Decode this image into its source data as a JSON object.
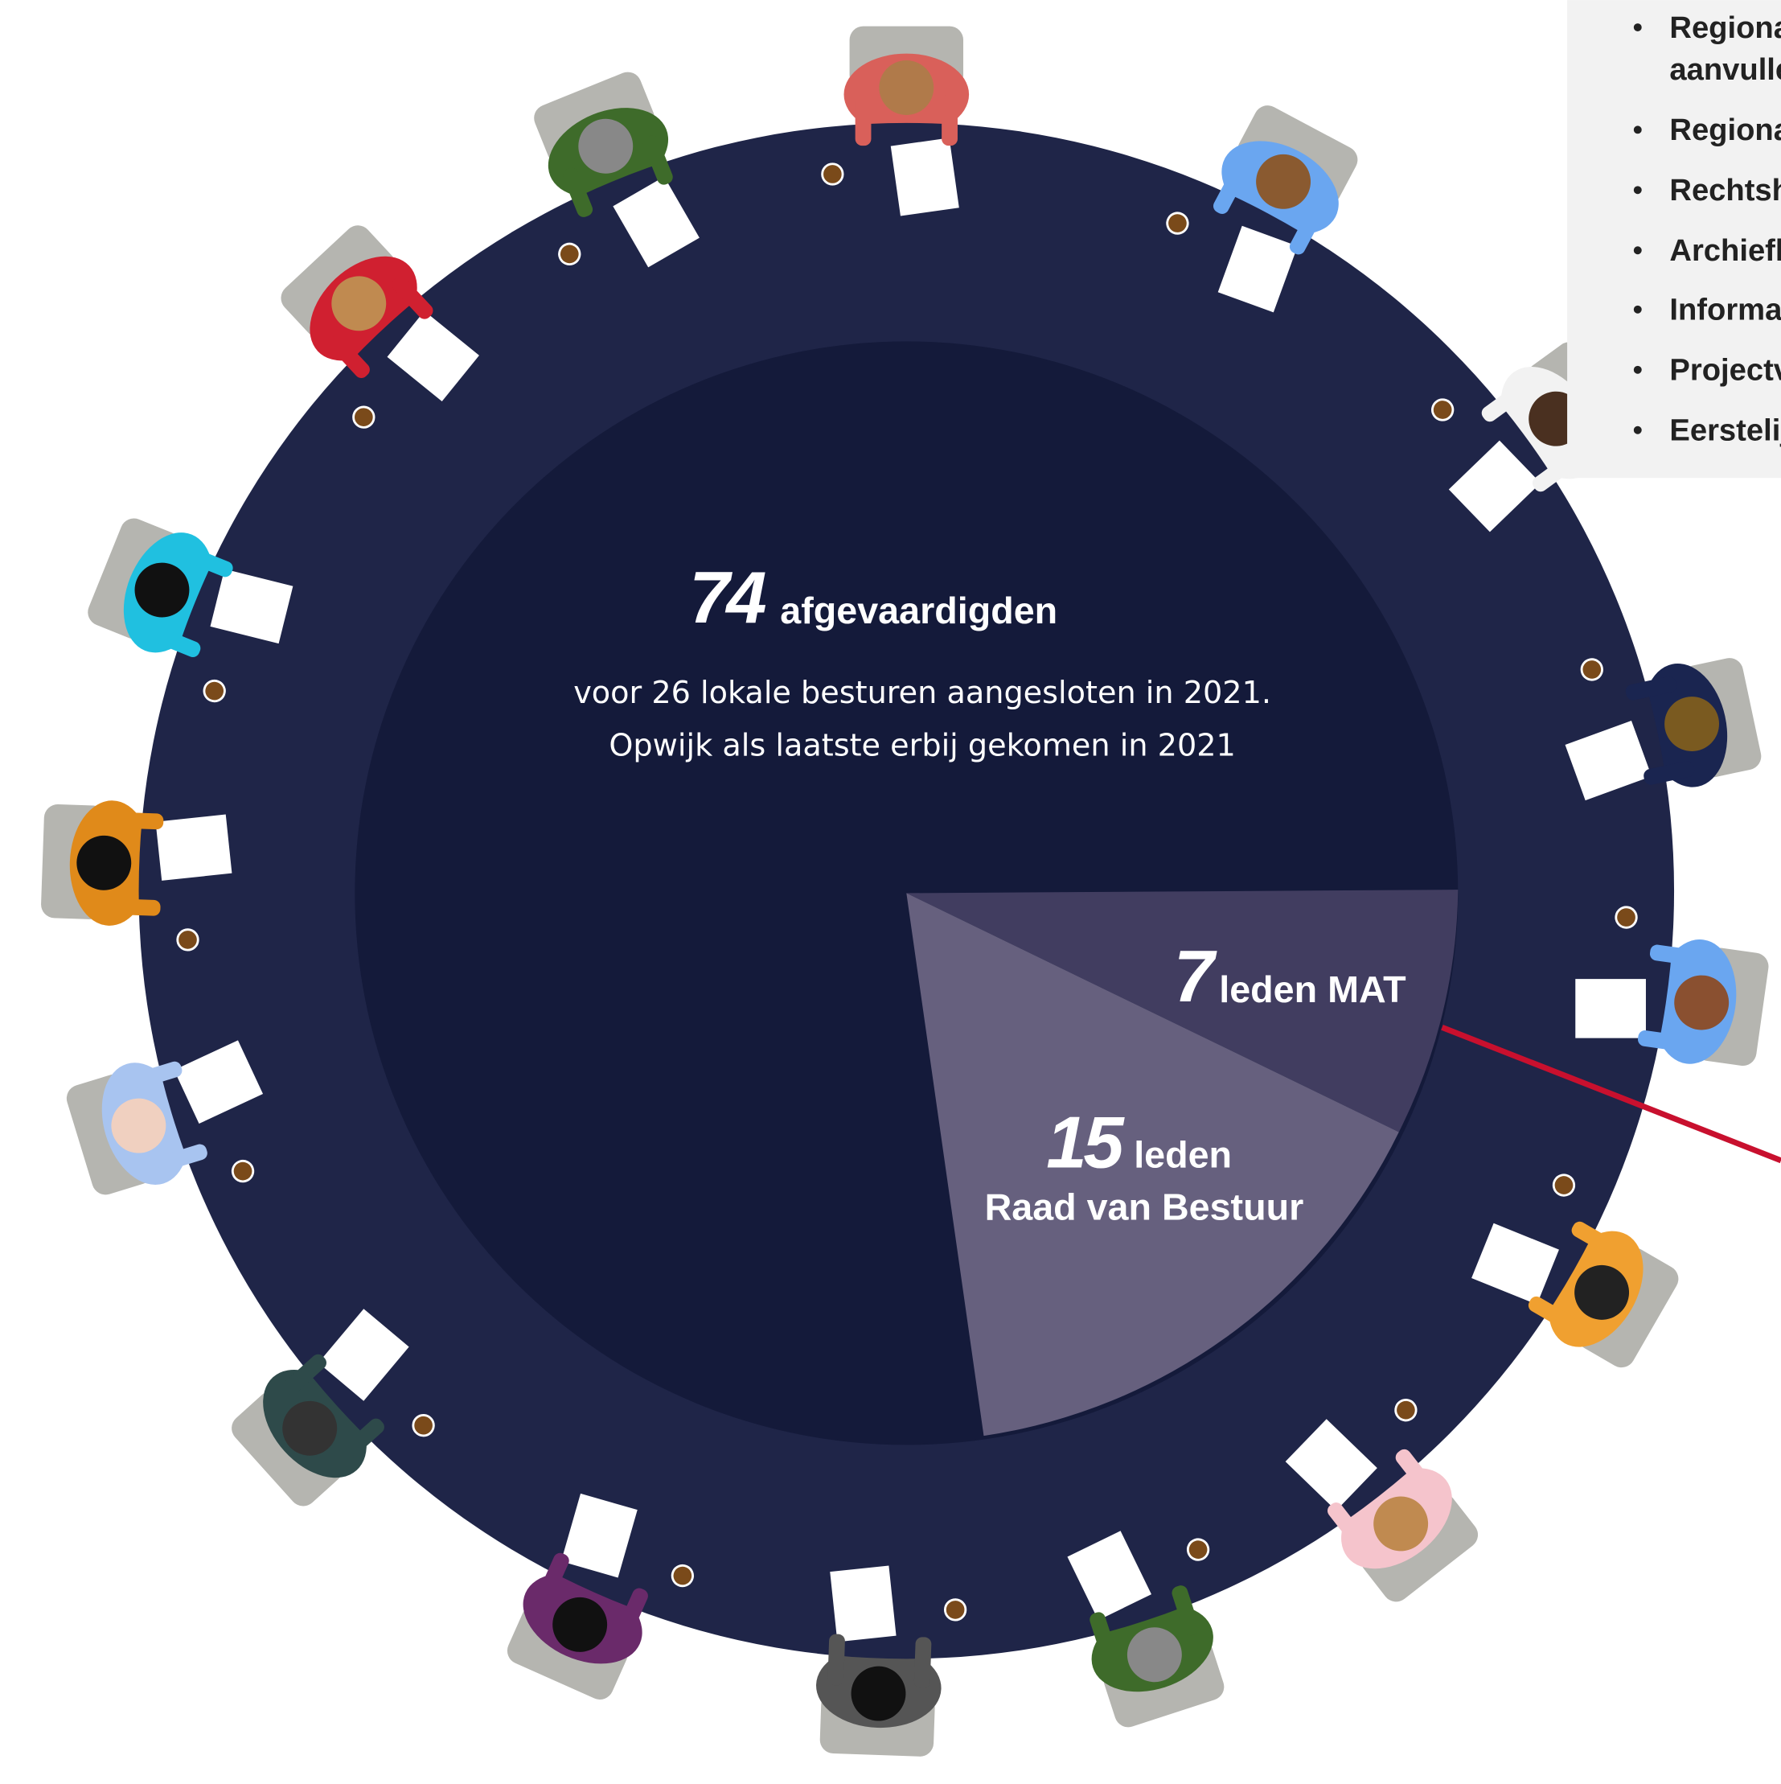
{
  "center": {
    "number": 74,
    "label": "afgevaardigden",
    "lines": [
      "voor 26 lokale besturen aangesloten in 2021.",
      "Opwijk als laatste erbij gekomen in 2021"
    ]
  },
  "mat": {
    "number": 7,
    "label": "leden MAT"
  },
  "raad": {
    "number": 15,
    "label": "leden",
    "label2": "Raad van Bestuur"
  },
  "panel": {
    "items": [
      "Regiona",
      "aanvulle",
      "Regiona",
      "Rechtsh",
      "Archiefl",
      "Informa",
      "Projectv",
      "Eerstelij"
    ]
  }
}
